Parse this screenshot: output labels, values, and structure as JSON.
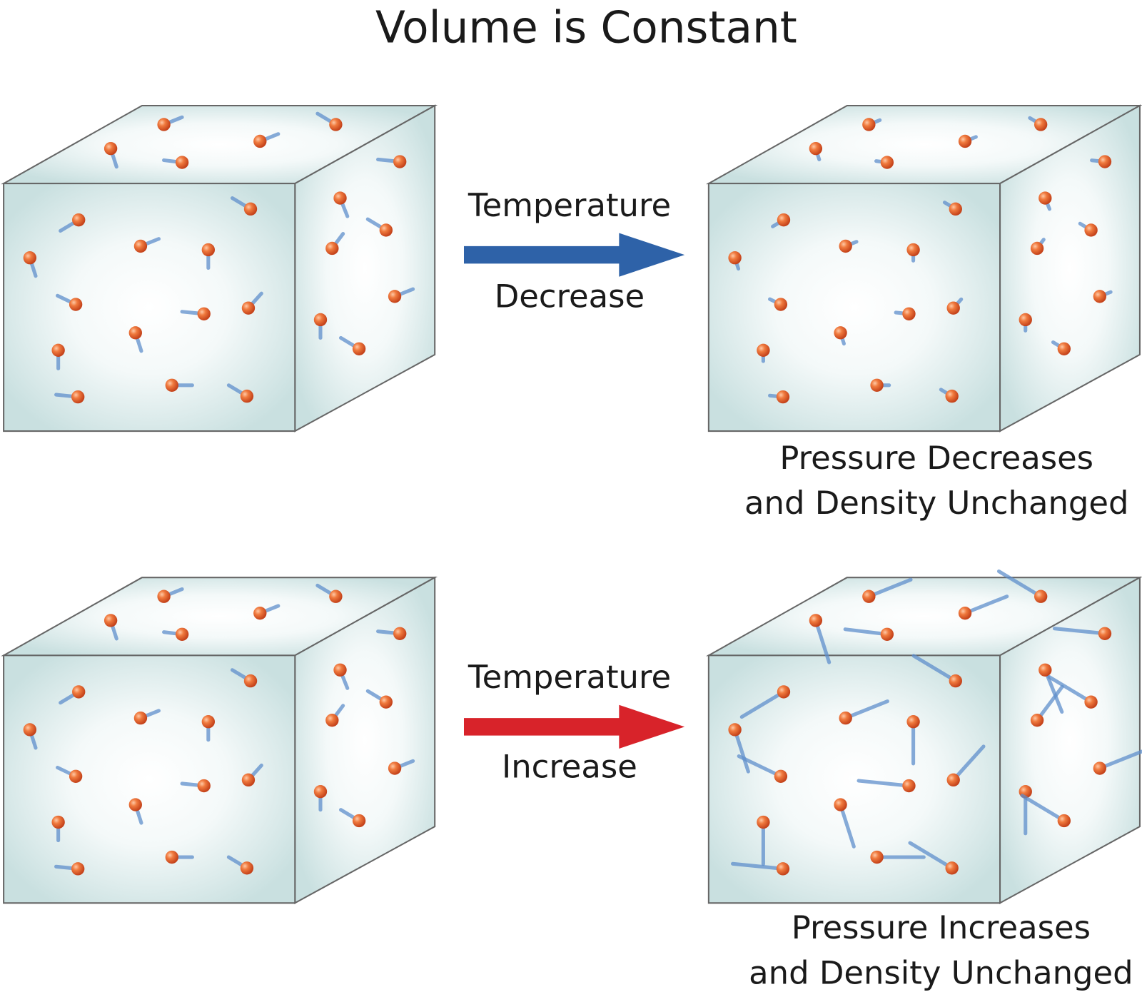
{
  "title": "Volume is Constant",
  "rows": [
    {
      "arrow": {
        "top": "Temperature",
        "bottom": "Decrease"
      },
      "caption": [
        "Pressure Decreases",
        "and Density Unchanged"
      ]
    },
    {
      "arrow": {
        "top": "Temperature",
        "bottom": "Increase"
      },
      "caption": [
        "Pressure Increases",
        "and Density Unchanged"
      ]
    }
  ]
}
